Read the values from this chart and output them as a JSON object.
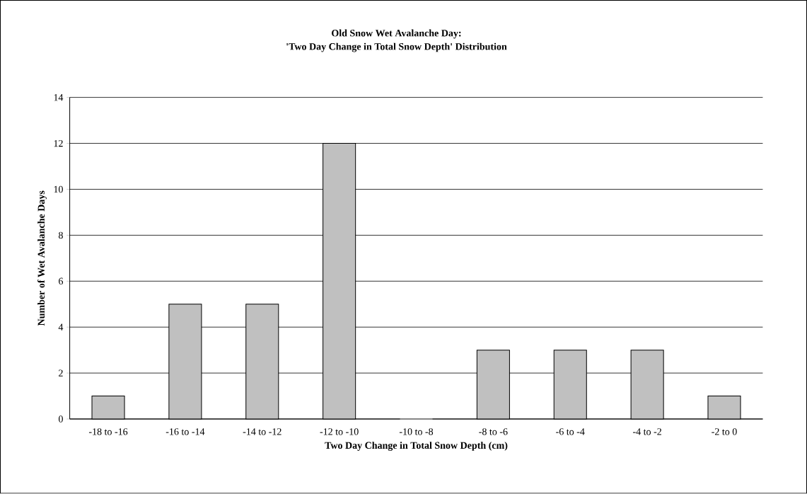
{
  "chart_data": {
    "type": "bar",
    "title": "Old Snow Wet Avalanche Day:\n'Two Day Change in Total Snow Depth' Distribution",
    "xlabel": "Two Day Change in Total Snow Depth  (cm)",
    "ylabel": "Number of Wet Avalanche Days",
    "categories": [
      "-18 to -16",
      "-16 to -14",
      "-14 to -12",
      "-12 to -10",
      "-10 to -8",
      "-8 to -6",
      "-6 to -4",
      "-4 to -2",
      "-2 to 0"
    ],
    "values": [
      1,
      5,
      5,
      12,
      0,
      3,
      3,
      3,
      1
    ],
    "color": "#c0c0c0",
    "ylim": [
      0,
      14
    ],
    "yticks": [
      0,
      2,
      4,
      6,
      8,
      10,
      12,
      14
    ],
    "grid": "y"
  }
}
